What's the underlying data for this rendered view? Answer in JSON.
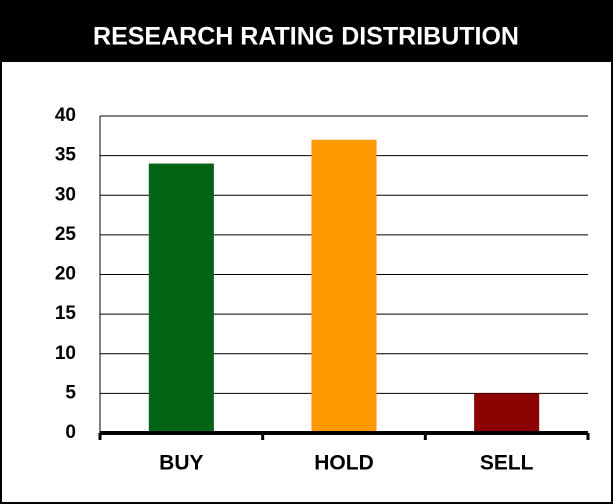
{
  "chart_data": {
    "type": "bar",
    "title": "RESEARCH RATING DISTRIBUTION",
    "categories": [
      "BUY",
      "HOLD",
      "SELL"
    ],
    "values": [
      34,
      37,
      5
    ],
    "colors": [
      "#006414",
      "#ff9900",
      "#8b0000"
    ],
    "ylim": [
      0,
      40
    ],
    "yticks": [
      0,
      5,
      10,
      15,
      20,
      25,
      30,
      35,
      40
    ],
    "grid": true
  }
}
